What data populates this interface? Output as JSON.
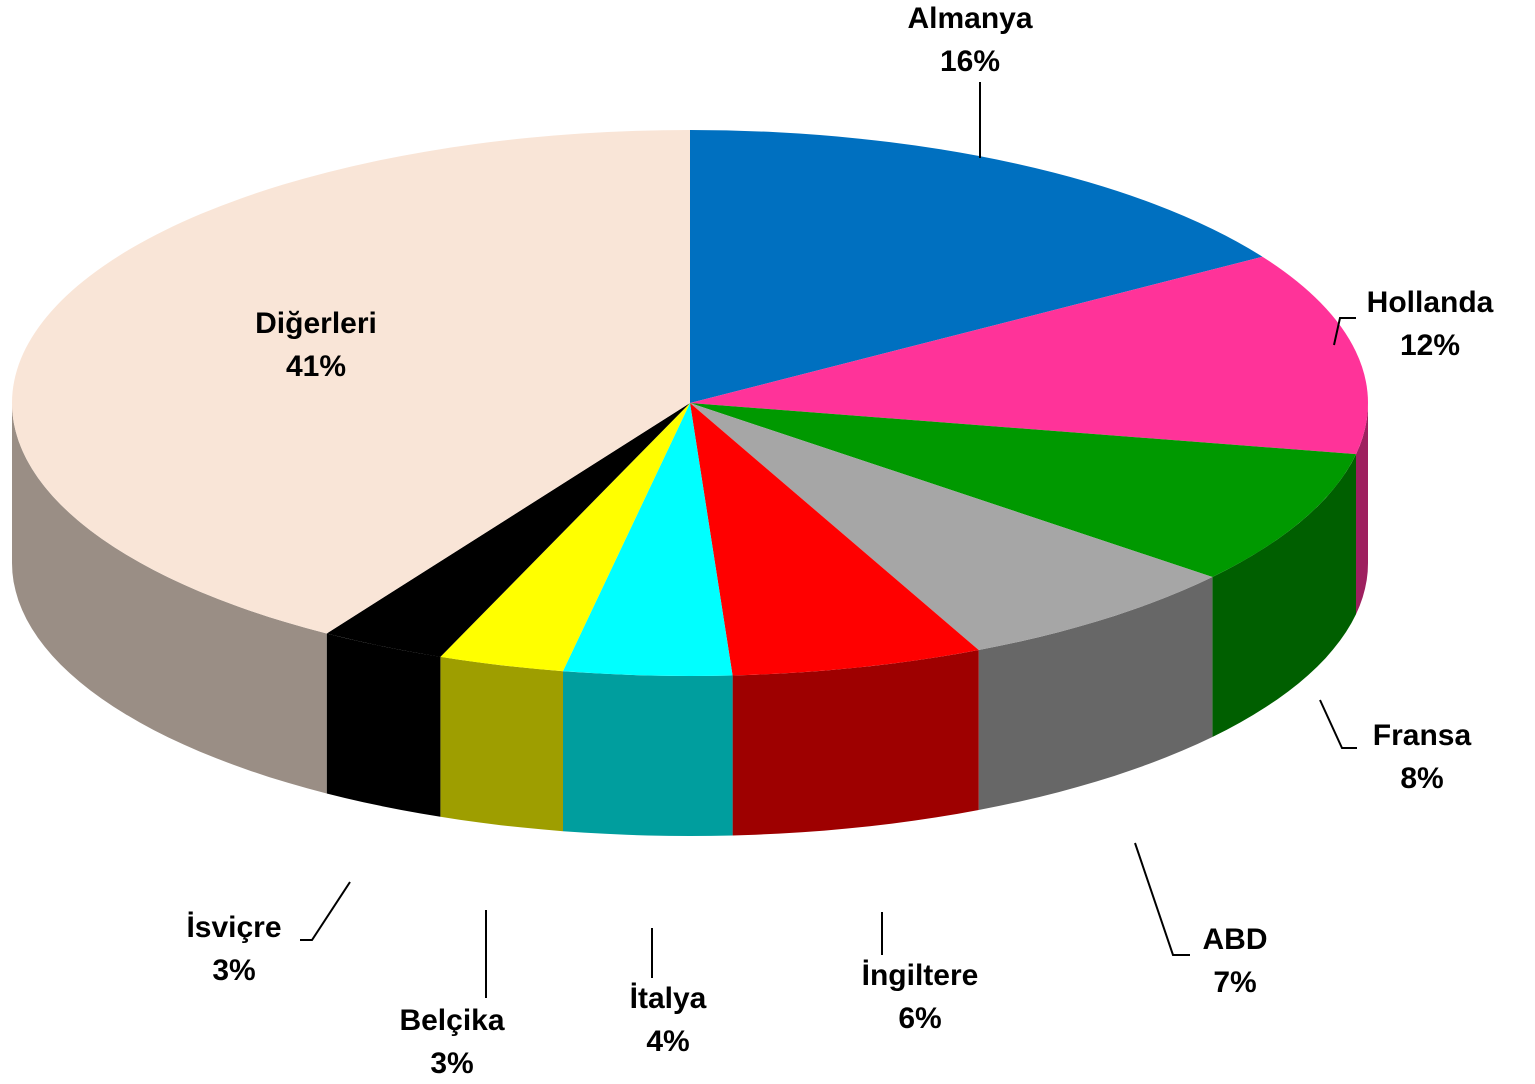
{
  "chart_data": {
    "type": "pie3d",
    "categories": [
      "Almanya",
      "Hollanda",
      "Fransa",
      "ABD",
      "İngiltere",
      "İtalya",
      "Belçika",
      "İsviçre",
      "Diğerleri"
    ],
    "values": [
      16,
      12,
      8,
      7,
      6,
      4,
      3,
      3,
      41
    ],
    "value_labels": [
      "16%",
      "12%",
      "8%",
      "7%",
      "6%",
      "4%",
      "3%",
      "3%",
      "41%"
    ],
    "colors": [
      "#0070c0",
      "#ff3399",
      "#009900",
      "#a6a6a6",
      "#ff0000",
      "#00ffff",
      "#ffff00",
      "#000000",
      "#f9e5d7"
    ]
  }
}
